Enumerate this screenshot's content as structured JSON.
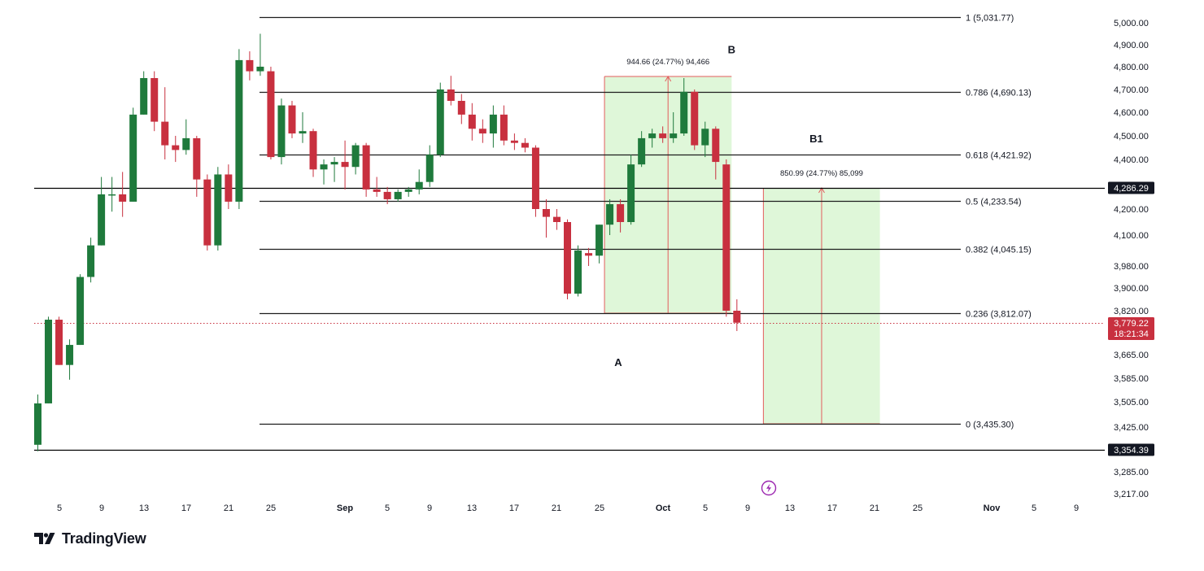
{
  "brand": {
    "name": "TradingView",
    "logo_icon": "tradingview-logo-icon"
  },
  "colors": {
    "up": "#1f7a3c",
    "down": "#c8303f",
    "range_fill": "#dff7d9",
    "range_line": "#e35d5d",
    "current_price_tag": "#c8303f",
    "price_tag": "#131722"
  },
  "chart_data": {
    "type": "candlestick",
    "x_ticks": [
      "5",
      "9",
      "13",
      "17",
      "21",
      "25",
      "Sep",
      "5",
      "9",
      "13",
      "17",
      "21",
      "25",
      "Oct",
      "5",
      "9",
      "13",
      "17",
      "21",
      "25",
      "Nov",
      "5",
      "9"
    ],
    "y_ticks": [
      "5,000.00",
      "4,900.00",
      "4,800.00",
      "4,700.00",
      "4,600.00",
      "4,500.00",
      "4,400.00",
      "4,200.00",
      "4,100.00",
      "3,980.00",
      "3,900.00",
      "3,820.00",
      "3,665.00",
      "3,585.00",
      "3,505.00",
      "3,425.00",
      "3,285.00",
      "3,217.00"
    ],
    "fib_levels": [
      {
        "label": "1 (5,031.77)",
        "price": 5031.77
      },
      {
        "label": "0.786 (4,690.13)",
        "price": 4690.13
      },
      {
        "label": "0.618 (4,421.92)",
        "price": 4421.92
      },
      {
        "label": "0.5 (4,233.54)",
        "price": 4233.54
      },
      {
        "label": "0.382 (4,045.15)",
        "price": 4045.15
      },
      {
        "label": "0.236 (3,812.07)",
        "price": 3812.07
      },
      {
        "label": "0 (3,435.30)",
        "price": 3435.3
      }
    ],
    "horizontal_lines": [
      {
        "price": 4286.29,
        "label": "4,286.29"
      },
      {
        "price": 3354.39,
        "label": "3,354.39"
      }
    ],
    "current_price": {
      "price": 3779.22,
      "label": "3,779.22",
      "countdown": "18:21:34"
    },
    "measures": [
      {
        "label": "944.66 (24.77%) 94,466",
        "from_price": 3812,
        "to_price": 4757,
        "start_slot": 53.5,
        "end_slot": 65.5
      },
      {
        "label": "850.99 (24.77%) 85,099",
        "from_price": 3435.3,
        "to_price": 4286.29,
        "start_slot": 68.5,
        "end_slot": 79.5
      }
    ],
    "wave_labels": [
      {
        "text": "A",
        "slot": 54.8,
        "price": 3640
      },
      {
        "text": "B",
        "slot": 65.5,
        "price": 4880
      },
      {
        "text": "B1",
        "slot": 73.5,
        "price": 4490
      }
    ],
    "candles": [
      {
        "o": 3370,
        "h": 3530,
        "l": 3350,
        "c": 3500
      },
      {
        "o": 3500,
        "h": 3800,
        "l": 3500,
        "c": 3790
      },
      {
        "o": 3790,
        "h": 3800,
        "l": 3630,
        "c": 3630
      },
      {
        "o": 3630,
        "h": 3720,
        "l": 3580,
        "c": 3700
      },
      {
        "o": 3700,
        "h": 3950,
        "l": 3700,
        "c": 3940
      },
      {
        "o": 3940,
        "h": 4090,
        "l": 3920,
        "c": 4060
      },
      {
        "o": 4060,
        "h": 4330,
        "l": 4060,
        "c": 4260
      },
      {
        "o": 4260,
        "h": 4330,
        "l": 4190,
        "c": 4260
      },
      {
        "o": 4260,
        "h": 4350,
        "l": 4170,
        "c": 4230
      },
      {
        "o": 4230,
        "h": 4620,
        "l": 4230,
        "c": 4590
      },
      {
        "o": 4590,
        "h": 4780,
        "l": 4590,
        "c": 4750
      },
      {
        "o": 4750,
        "h": 4780,
        "l": 4520,
        "c": 4560
      },
      {
        "o": 4560,
        "h": 4710,
        "l": 4400,
        "c": 4460
      },
      {
        "o": 4460,
        "h": 4500,
        "l": 4390,
        "c": 4440
      },
      {
        "o": 4440,
        "h": 4570,
        "l": 4420,
        "c": 4490
      },
      {
        "o": 4490,
        "h": 4500,
        "l": 4250,
        "c": 4320
      },
      {
        "o": 4320,
        "h": 4340,
        "l": 4040,
        "c": 4060
      },
      {
        "o": 4060,
        "h": 4370,
        "l": 4040,
        "c": 4340
      },
      {
        "o": 4340,
        "h": 4380,
        "l": 4200,
        "c": 4230
      },
      {
        "o": 4230,
        "h": 4880,
        "l": 4200,
        "c": 4830
      },
      {
        "o": 4830,
        "h": 4870,
        "l": 4740,
        "c": 4780
      },
      {
        "o": 4780,
        "h": 4950,
        "l": 4760,
        "c": 4800
      },
      {
        "o": 4780,
        "h": 4800,
        "l": 4400,
        "c": 4410
      },
      {
        "o": 4410,
        "h": 4660,
        "l": 4380,
        "c": 4630
      },
      {
        "o": 4630,
        "h": 4650,
        "l": 4490,
        "c": 4510
      },
      {
        "o": 4510,
        "h": 4600,
        "l": 4470,
        "c": 4520
      },
      {
        "o": 4520,
        "h": 4530,
        "l": 4330,
        "c": 4360
      },
      {
        "o": 4360,
        "h": 4400,
        "l": 4300,
        "c": 4380
      },
      {
        "o": 4380,
        "h": 4410,
        "l": 4310,
        "c": 4390
      },
      {
        "o": 4390,
        "h": 4480,
        "l": 4280,
        "c": 4370
      },
      {
        "o": 4370,
        "h": 4470,
        "l": 4340,
        "c": 4460
      },
      {
        "o": 4460,
        "h": 4470,
        "l": 4250,
        "c": 4280
      },
      {
        "o": 4280,
        "h": 4330,
        "l": 4250,
        "c": 4270
      },
      {
        "o": 4270,
        "h": 4290,
        "l": 4220,
        "c": 4240
      },
      {
        "o": 4240,
        "h": 4280,
        "l": 4230,
        "c": 4270
      },
      {
        "o": 4270,
        "h": 4290,
        "l": 4250,
        "c": 4280
      },
      {
        "o": 4280,
        "h": 4360,
        "l": 4260,
        "c": 4310
      },
      {
        "o": 4310,
        "h": 4460,
        "l": 4290,
        "c": 4420
      },
      {
        "o": 4420,
        "h": 4730,
        "l": 4410,
        "c": 4700
      },
      {
        "o": 4700,
        "h": 4760,
        "l": 4630,
        "c": 4650
      },
      {
        "o": 4650,
        "h": 4680,
        "l": 4550,
        "c": 4590
      },
      {
        "o": 4590,
        "h": 4640,
        "l": 4480,
        "c": 4530
      },
      {
        "o": 4530,
        "h": 4570,
        "l": 4470,
        "c": 4510
      },
      {
        "o": 4510,
        "h": 4630,
        "l": 4450,
        "c": 4590
      },
      {
        "o": 4590,
        "h": 4630,
        "l": 4460,
        "c": 4480
      },
      {
        "o": 4480,
        "h": 4510,
        "l": 4440,
        "c": 4470
      },
      {
        "o": 4470,
        "h": 4490,
        "l": 4430,
        "c": 4450
      },
      {
        "o": 4450,
        "h": 4460,
        "l": 4170,
        "c": 4200
      },
      {
        "o": 4200,
        "h": 4240,
        "l": 4090,
        "c": 4170
      },
      {
        "o": 4170,
        "h": 4200,
        "l": 4120,
        "c": 4150
      },
      {
        "o": 4150,
        "h": 4160,
        "l": 3860,
        "c": 3880
      },
      {
        "o": 3880,
        "h": 4060,
        "l": 3870,
        "c": 4040
      },
      {
        "o": 4030,
        "h": 4050,
        "l": 3980,
        "c": 4020
      },
      {
        "o": 4020,
        "h": 4140,
        "l": 3990,
        "c": 4140
      },
      {
        "o": 4140,
        "h": 4240,
        "l": 4100,
        "c": 4220
      },
      {
        "o": 4220,
        "h": 4240,
        "l": 4110,
        "c": 4150
      },
      {
        "o": 4150,
        "h": 4420,
        "l": 4140,
        "c": 4380
      },
      {
        "o": 4380,
        "h": 4520,
        "l": 4370,
        "c": 4490
      },
      {
        "o": 4490,
        "h": 4530,
        "l": 4450,
        "c": 4510
      },
      {
        "o": 4510,
        "h": 4540,
        "l": 4470,
        "c": 4490
      },
      {
        "o": 4490,
        "h": 4600,
        "l": 4470,
        "c": 4510
      },
      {
        "o": 4510,
        "h": 4750,
        "l": 4500,
        "c": 4690
      },
      {
        "o": 4690,
        "h": 4700,
        "l": 4440,
        "c": 4460
      },
      {
        "o": 4460,
        "h": 4560,
        "l": 4410,
        "c": 4530
      },
      {
        "o": 4530,
        "h": 4540,
        "l": 4320,
        "c": 4390
      },
      {
        "o": 4380,
        "h": 4400,
        "l": 3800,
        "c": 3820
      },
      {
        "o": 3820,
        "h": 3860,
        "l": 3750,
        "c": 3780
      }
    ]
  }
}
